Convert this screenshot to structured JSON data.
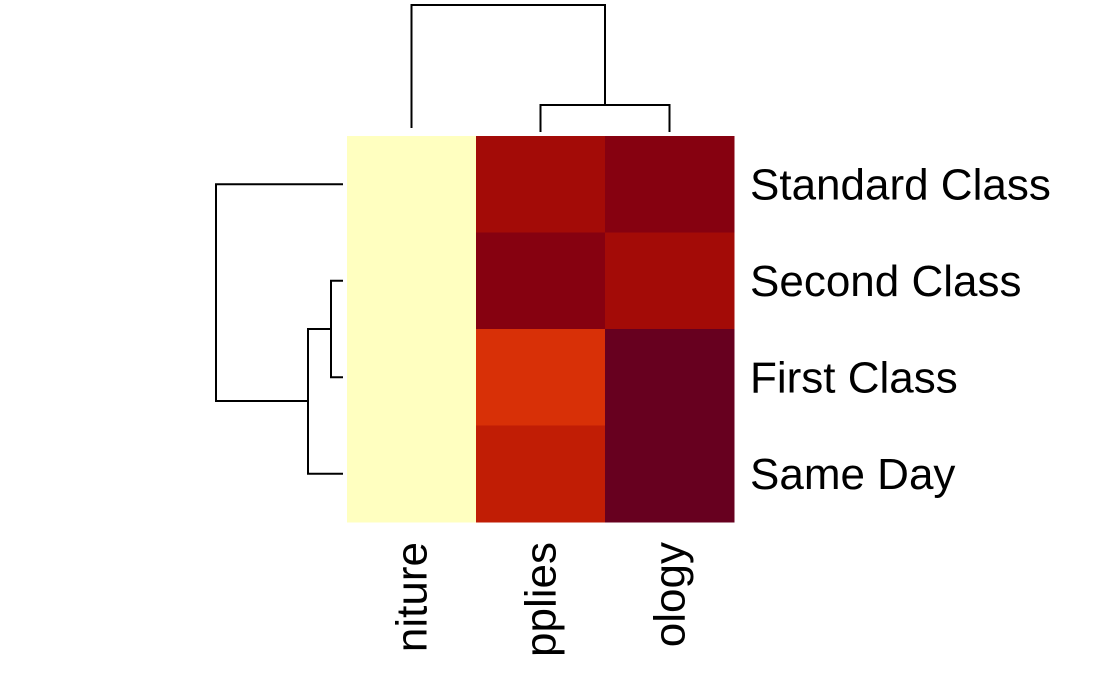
{
  "chart_data": {
    "type": "heatmap",
    "rows": [
      "Standard Class",
      "Second Class",
      "First Class",
      "Same Day"
    ],
    "columns": [
      "Furniture",
      "Office Supplies",
      "Technology"
    ],
    "column_labels_visible": [
      "niture",
      "pplies",
      "ology"
    ],
    "values": [
      [
        0.0,
        0.78,
        0.9
      ],
      [
        0.0,
        0.9,
        0.78
      ],
      [
        0.0,
        0.55,
        1.0
      ],
      [
        0.0,
        0.65,
        1.0
      ]
    ],
    "value_note": "relative intensity 0-1 estimated from cell colour (pale yellow = low, dark red = high)",
    "colormap": [
      "#ffffc0",
      "#fde18a",
      "#f7a44b",
      "#e9500f",
      "#d52a06",
      "#b11204",
      "#93020a",
      "#67001f"
    ],
    "row_dendrogram": {
      "merges": [
        [
          "Second Class",
          "First Class"
        ],
        [
          [
            "Second Class",
            "First Class"
          ],
          "Same Day"
        ],
        [
          "Standard Class",
          [
            [
              "Second Class",
              "First Class"
            ],
            "Same Day"
          ]
        ]
      ],
      "position": "left"
    },
    "column_dendrogram": {
      "merges": [
        [
          "Office Supplies",
          "Technology"
        ],
        [
          "Furniture",
          [
            "Office Supplies",
            "Technology"
          ]
        ]
      ],
      "position": "top"
    },
    "title": "",
    "xlabel": "",
    "ylabel": "",
    "grid": false,
    "legend": false
  }
}
